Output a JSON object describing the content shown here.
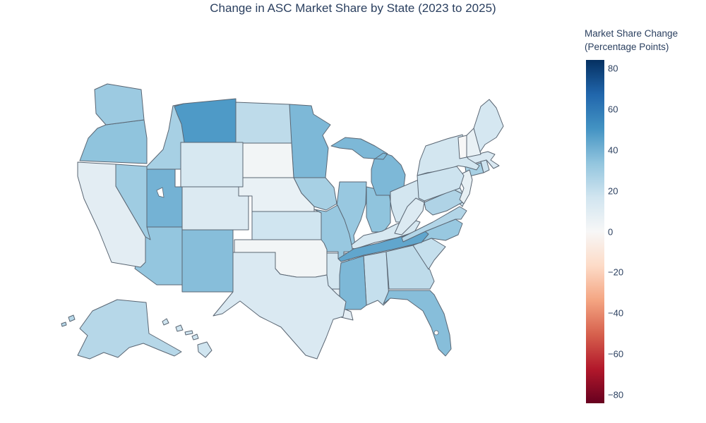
{
  "title": "Change in ASC Market Share by State (2023 to 2025)",
  "colorbar": {
    "title_line1": "Market Share Change",
    "title_line2": "(Percentage Points)",
    "tick_values": [
      80,
      60,
      40,
      20,
      0,
      -20,
      -40,
      -60,
      -80
    ],
    "tick_labels": [
      "80",
      "60",
      "40",
      "20",
      "0",
      "−20",
      "−40",
      "−60",
      "−80"
    ],
    "range": [
      -84,
      84
    ],
    "colorscale": [
      "#67001f",
      "#b2182b",
      "#d6604d",
      "#f4a582",
      "#fddbc7",
      "#f7f7f7",
      "#d1e5f0",
      "#92c5de",
      "#4393c3",
      "#2166ac",
      "#053061"
    ]
  },
  "colors": {
    "title_text": "#2a3f5f",
    "state_border": "#5a6673",
    "background": "#ffffff"
  },
  "chart_data": {
    "type": "choropleth",
    "geo_scope": "usa",
    "value_label": "Market Share Change (Percentage Points)",
    "states": [
      {
        "abbr": "AL",
        "name": "Alabama",
        "value": 20
      },
      {
        "abbr": "AK",
        "name": "Alaska",
        "value": 24
      },
      {
        "abbr": "AZ",
        "name": "Arizona",
        "value": 33
      },
      {
        "abbr": "AR",
        "name": "Arkansas",
        "value": 16
      },
      {
        "abbr": "CA",
        "name": "California",
        "value": 9
      },
      {
        "abbr": "CO",
        "name": "Colorado",
        "value": 12
      },
      {
        "abbr": "CT",
        "name": "Connecticut",
        "value": 28
      },
      {
        "abbr": "DE",
        "name": "Delaware",
        "value": 18
      },
      {
        "abbr": "FL",
        "name": "Florida",
        "value": 36
      },
      {
        "abbr": "GA",
        "name": "Georgia",
        "value": 22
      },
      {
        "abbr": "HI",
        "name": "Hawaii",
        "value": 17
      },
      {
        "abbr": "ID",
        "name": "Idaho",
        "value": 28
      },
      {
        "abbr": "IL",
        "name": "Illinois",
        "value": 32
      },
      {
        "abbr": "IN",
        "name": "Indiana",
        "value": 34
      },
      {
        "abbr": "IA",
        "name": "Iowa",
        "value": 28
      },
      {
        "abbr": "KS",
        "name": "Kansas",
        "value": 17
      },
      {
        "abbr": "KY",
        "name": "Kentucky",
        "value": 14
      },
      {
        "abbr": "LA",
        "name": "Louisiana",
        "value": 8
      },
      {
        "abbr": "ME",
        "name": "Maine",
        "value": 15
      },
      {
        "abbr": "MD",
        "name": "Maryland",
        "value": 26
      },
      {
        "abbr": "MA",
        "name": "Massachusetts",
        "value": 13
      },
      {
        "abbr": "MI",
        "name": "Michigan",
        "value": 38
      },
      {
        "abbr": "MN",
        "name": "Minnesota",
        "value": 38
      },
      {
        "abbr": "MS",
        "name": "Mississippi",
        "value": 38
      },
      {
        "abbr": "MO",
        "name": "Missouri",
        "value": 32
      },
      {
        "abbr": "MT",
        "name": "Montana",
        "value": 48
      },
      {
        "abbr": "NE",
        "name": "Nebraska",
        "value": 6
      },
      {
        "abbr": "NV",
        "name": "Nevada",
        "value": 30
      },
      {
        "abbr": "NH",
        "name": "New Hampshire",
        "value": 6
      },
      {
        "abbr": "NJ",
        "name": "New Jersey",
        "value": 7
      },
      {
        "abbr": "NM",
        "name": "New Mexico",
        "value": 36
      },
      {
        "abbr": "NY",
        "name": "New York",
        "value": 16
      },
      {
        "abbr": "NC",
        "name": "North Carolina",
        "value": 32
      },
      {
        "abbr": "ND",
        "name": "North Dakota",
        "value": 22
      },
      {
        "abbr": "OH",
        "name": "Ohio",
        "value": 16
      },
      {
        "abbr": "OK",
        "name": "Oklahoma",
        "value": 2
      },
      {
        "abbr": "OR",
        "name": "Oregon",
        "value": 34
      },
      {
        "abbr": "PA",
        "name": "Pennsylvania",
        "value": 18
      },
      {
        "abbr": "RI",
        "name": "Rhode Island",
        "value": 18
      },
      {
        "abbr": "SC",
        "name": "South Carolina",
        "value": 20
      },
      {
        "abbr": "SD",
        "name": "South Dakota",
        "value": 2
      },
      {
        "abbr": "TN",
        "name": "Tennessee",
        "value": 44
      },
      {
        "abbr": "TX",
        "name": "Texas",
        "value": 13
      },
      {
        "abbr": "UT",
        "name": "Utah",
        "value": 40
      },
      {
        "abbr": "VT",
        "name": "Vermont",
        "value": 0
      },
      {
        "abbr": "VA",
        "name": "Virginia",
        "value": 25
      },
      {
        "abbr": "WA",
        "name": "Washington",
        "value": 31
      },
      {
        "abbr": "WV",
        "name": "West Virginia",
        "value": 12
      },
      {
        "abbr": "WY",
        "name": "Wyoming",
        "value": 14
      }
    ]
  }
}
